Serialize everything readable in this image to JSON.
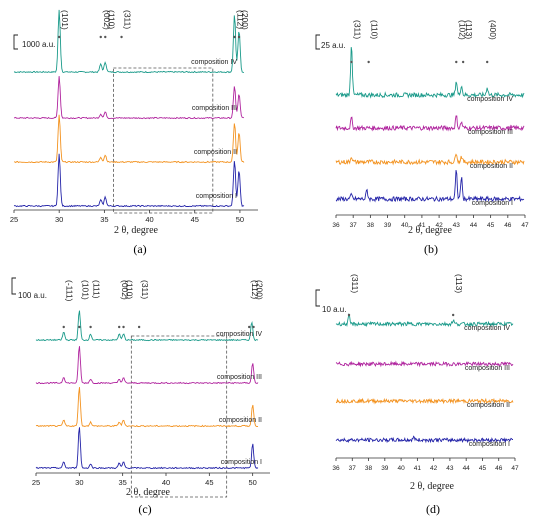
{
  "figure": {
    "panels": [
      "(a)",
      "(b)",
      "(c)",
      "(d)"
    ]
  },
  "colors": {
    "composition IV": "#1a9a8a",
    "composition III": "#b0249e",
    "composition II": "#f39321",
    "composition I": "#2323a8",
    "box": "#555555",
    "axis": "#333333"
  },
  "chart_data": [
    {
      "panel": "(a)",
      "type": "line",
      "xlabel": "2 θ, degree",
      "ylabel": "",
      "xlim": [
        25,
        52
      ],
      "xticks": [
        25,
        30,
        35,
        40,
        45,
        50
      ],
      "scale_bar": "1000 a.u.",
      "series": [
        {
          "name": "composition IV",
          "baseline": 72,
          "peaks": [
            [
              30.0,
              62
            ],
            [
              34.6,
              8
            ],
            [
              35.1,
              10
            ],
            [
              49.4,
              58
            ],
            [
              49.9,
              42
            ]
          ]
        },
        {
          "name": "composition III",
          "baseline": 118,
          "peaks": [
            [
              30.0,
              42
            ],
            [
              34.6,
              4
            ],
            [
              35.1,
              6
            ],
            [
              49.4,
              32
            ],
            [
              49.9,
              24
            ]
          ]
        },
        {
          "name": "composition II",
          "baseline": 162,
          "peaks": [
            [
              30.0,
              47
            ],
            [
              34.6,
              5
            ],
            [
              35.1,
              7
            ],
            [
              49.4,
              40
            ],
            [
              49.9,
              30
            ]
          ]
        },
        {
          "name": "composition I",
          "baseline": 206,
          "peaks": [
            [
              30.0,
              52
            ],
            [
              34.6,
              6
            ],
            [
              35.1,
              9
            ],
            [
              49.4,
              46
            ],
            [
              49.9,
              36
            ]
          ]
        }
      ],
      "annotations": [
        {
          "label": "(101)",
          "x": 30.0
        },
        {
          "label": "(002)",
          "x": 34.6
        },
        {
          "label": "(110)",
          "x": 35.1
        },
        {
          "label": "(311)",
          "x": 36.9
        },
        {
          "label": "(112)",
          "x": 49.4
        },
        {
          "label": "(200)",
          "x": 49.9
        }
      ],
      "dashed_box": {
        "x": [
          36,
          47
        ]
      }
    },
    {
      "panel": "(b)",
      "type": "line",
      "xlabel": "2 θ, degree",
      "ylabel": "",
      "xlim": [
        36,
        47
      ],
      "xticks": [
        36,
        37,
        38,
        39,
        40,
        41,
        42,
        43,
        44,
        45,
        46,
        47
      ],
      "scale_bar": "25 a.u.",
      "series": [
        {
          "name": "composition IV",
          "baseline": 95,
          "peaks": [
            [
              36.9,
              52
            ],
            [
              43.0,
              14
            ],
            [
              43.3,
              10
            ],
            [
              44.8,
              8
            ]
          ]
        },
        {
          "name": "composition III",
          "baseline": 128,
          "peaks": [
            [
              36.9,
              10
            ],
            [
              43.0,
              12
            ],
            [
              43.3,
              6
            ]
          ]
        },
        {
          "name": "composition II",
          "baseline": 162,
          "peaks": [
            [
              36.9,
              6
            ],
            [
              43.0,
              10
            ],
            [
              43.3,
              6
            ]
          ]
        },
        {
          "name": "composition I",
          "baseline": 199,
          "peaks": [
            [
              36.9,
              4
            ],
            [
              37.8,
              9
            ],
            [
              43.0,
              28
            ],
            [
              43.3,
              22
            ]
          ]
        }
      ],
      "annotations": [
        {
          "label": "(311)",
          "x": 36.9
        },
        {
          "label": "(110)",
          "x": 37.9
        },
        {
          "label": "(102)",
          "x": 43.0
        },
        {
          "label": "(113)",
          "x": 43.4
        },
        {
          "label": "(400)",
          "x": 44.8
        }
      ]
    },
    {
      "panel": "(c)",
      "type": "line",
      "xlabel": "2 θ, degree",
      "ylabel": "",
      "xlim": [
        25,
        52
      ],
      "xticks": [
        25,
        30,
        35,
        40,
        45,
        50
      ],
      "scale_bar": "100 a.u.",
      "series": [
        {
          "name": "composition IV",
          "baseline": 340,
          "peaks": [
            [
              28.2,
              8
            ],
            [
              30.0,
              30
            ],
            [
              31.3,
              6
            ],
            [
              34.6,
              6
            ],
            [
              35.1,
              6
            ],
            [
              49.9,
              18
            ]
          ]
        },
        {
          "name": "composition III",
          "baseline": 383,
          "peaks": [
            [
              28.2,
              6
            ],
            [
              30.0,
              38
            ],
            [
              31.3,
              4
            ],
            [
              34.6,
              4
            ],
            [
              35.1,
              5
            ],
            [
              50.0,
              20
            ]
          ]
        },
        {
          "name": "composition II",
          "baseline": 426,
          "peaks": [
            [
              28.2,
              6
            ],
            [
              30.0,
              40
            ],
            [
              31.3,
              4
            ],
            [
              34.6,
              4
            ],
            [
              35.1,
              6
            ],
            [
              50.0,
              22
            ]
          ]
        },
        {
          "name": "composition I",
          "baseline": 468,
          "peaks": [
            [
              28.2,
              6
            ],
            [
              30.0,
              42
            ],
            [
              31.3,
              4
            ],
            [
              34.6,
              5
            ],
            [
              35.1,
              6
            ],
            [
              50.0,
              24
            ]
          ]
        }
      ],
      "annotations": [
        {
          "label": "(-111)",
          "x": 28.2
        },
        {
          "label": "(101)",
          "x": 30.0
        },
        {
          "label": "(111)",
          "x": 31.3
        },
        {
          "label": "(002)",
          "x": 34.6
        },
        {
          "label": "(110)",
          "x": 35.1
        },
        {
          "label": "(311)",
          "x": 36.9
        },
        {
          "label": "(112)",
          "x": 49.6
        },
        {
          "label": "(200)",
          "x": 50.1
        }
      ],
      "dashed_box": {
        "x": [
          36,
          47
        ]
      }
    },
    {
      "panel": "(d)",
      "type": "line",
      "xlabel": "2 θ, degree",
      "ylabel": "",
      "xlim": [
        36,
        47
      ],
      "xticks": [
        36,
        37,
        38,
        39,
        40,
        41,
        42,
        43,
        44,
        45,
        46,
        47
      ],
      "scale_bar": "10 a.u.",
      "series": [
        {
          "name": "composition IV",
          "baseline": 324,
          "peaks": [
            [
              36.8,
              8
            ],
            [
              43.2,
              4
            ]
          ]
        },
        {
          "name": "composition III",
          "baseline": 364,
          "peaks": []
        },
        {
          "name": "composition II",
          "baseline": 401,
          "peaks": []
        },
        {
          "name": "composition I",
          "baseline": 440,
          "peaks": [
            [
              40.8,
              3
            ]
          ]
        }
      ],
      "annotations": [
        {
          "label": "(311)",
          "x": 36.8
        },
        {
          "label": "(113)",
          "x": 43.2
        }
      ]
    }
  ]
}
